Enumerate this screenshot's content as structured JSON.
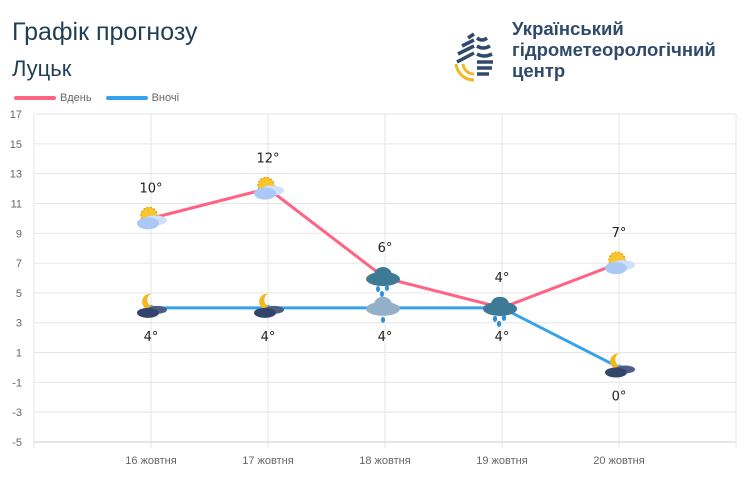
{
  "header": {
    "title": "Графік прогнозу",
    "city": "Луцьк"
  },
  "logo": {
    "org_lines": [
      "Український",
      "гідрометеорологічний",
      "центр"
    ]
  },
  "chart_data": {
    "type": "line",
    "categories": [
      "16 жовтня",
      "17 жовтня",
      "18 жовтня",
      "19 жовтня",
      "20 жовтня"
    ],
    "series": [
      {
        "name": "Вдень",
        "color": "#ff6384",
        "values": [
          10,
          12,
          6,
          4,
          7
        ],
        "labels": [
          "10°",
          "12°",
          "6°",
          "4°",
          "7°"
        ],
        "icons": [
          "sun-cloud",
          "sun-cloud",
          "rain-cloud",
          "rain-cloud",
          "sun-cloud"
        ]
      },
      {
        "name": "Вночі",
        "color": "#36a2eb",
        "values": [
          4,
          4,
          4,
          4,
          0
        ],
        "labels": [
          "4°",
          "4°",
          "4°",
          "4°",
          "0°"
        ],
        "icons": [
          "moon-cloud",
          "moon-cloud",
          "light-rain-cloud",
          "rain-cloud",
          "moon-cloud"
        ]
      }
    ],
    "yticks": [
      17,
      15,
      13,
      11,
      9,
      7,
      5,
      3,
      1,
      -1,
      -3,
      -5
    ],
    "ylim": [
      -5,
      17
    ],
    "grid": true,
    "legend": "top-left"
  }
}
